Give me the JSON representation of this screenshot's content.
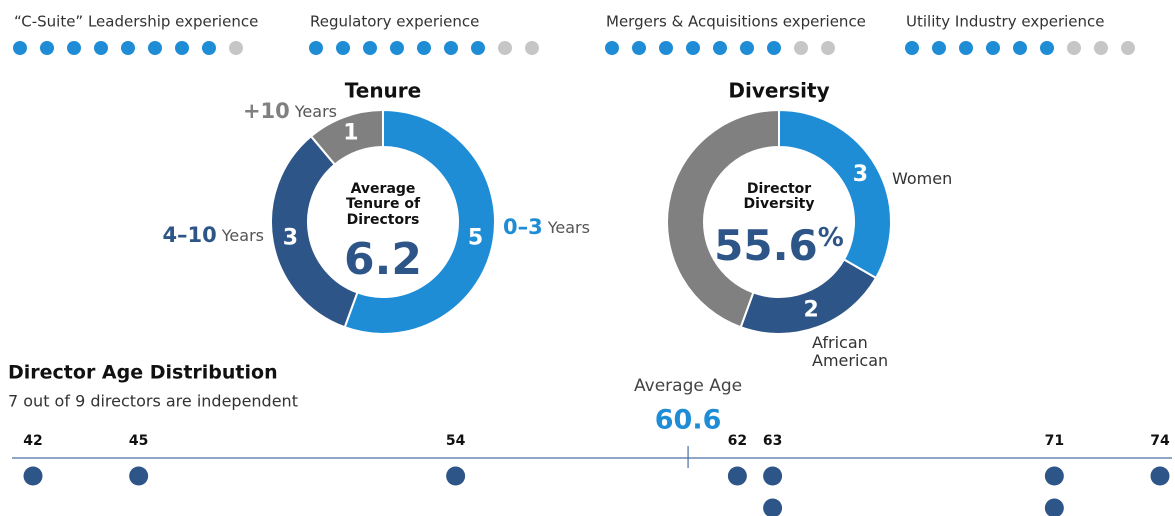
{
  "chart_data": [
    {
      "type": "dot_matrix",
      "categories": [
        "“C-Suite” Leadership experience",
        "Regulatory experience",
        "Mergers & Acquisitions experience",
        "Utility Industry experience"
      ],
      "values": [
        8,
        7,
        7,
        6
      ],
      "total": 9,
      "color": "#1f8dd6",
      "empty_color": "#c6c6c6"
    },
    {
      "type": "donut",
      "title": "Tenure",
      "center_label": "Average Tenure of Directors",
      "center_value": 6.2,
      "categories": [
        "0–3",
        "4–10",
        "+10"
      ],
      "category_unit": "Years",
      "values": [
        5,
        3,
        1
      ],
      "colors": [
        "#1f8dd6",
        "#2e5587",
        "#808080"
      ]
    },
    {
      "type": "donut",
      "title": "Diversity",
      "center_label": "Director Diversity",
      "center_value": 55.6,
      "center_unit": "%",
      "categories": [
        "Women",
        "African American",
        null
      ],
      "values": [
        3,
        2,
        4
      ],
      "colors": [
        "#1f8dd6",
        "#2e5587",
        "#808080"
      ]
    },
    {
      "type": "strip",
      "title": "Director Age Distribution",
      "subtitle": "7 out of 9 directors are independent",
      "x": [
        42,
        45,
        54,
        62,
        63,
        63,
        71,
        71,
        74
      ],
      "xlim": [
        42,
        74
      ],
      "xticks": [
        42,
        45,
        54,
        62,
        63,
        71,
        74
      ],
      "average_label": "Average Age",
      "average": 60.6,
      "color": "#2e5587",
      "average_color": "#1f8dd6"
    }
  ]
}
